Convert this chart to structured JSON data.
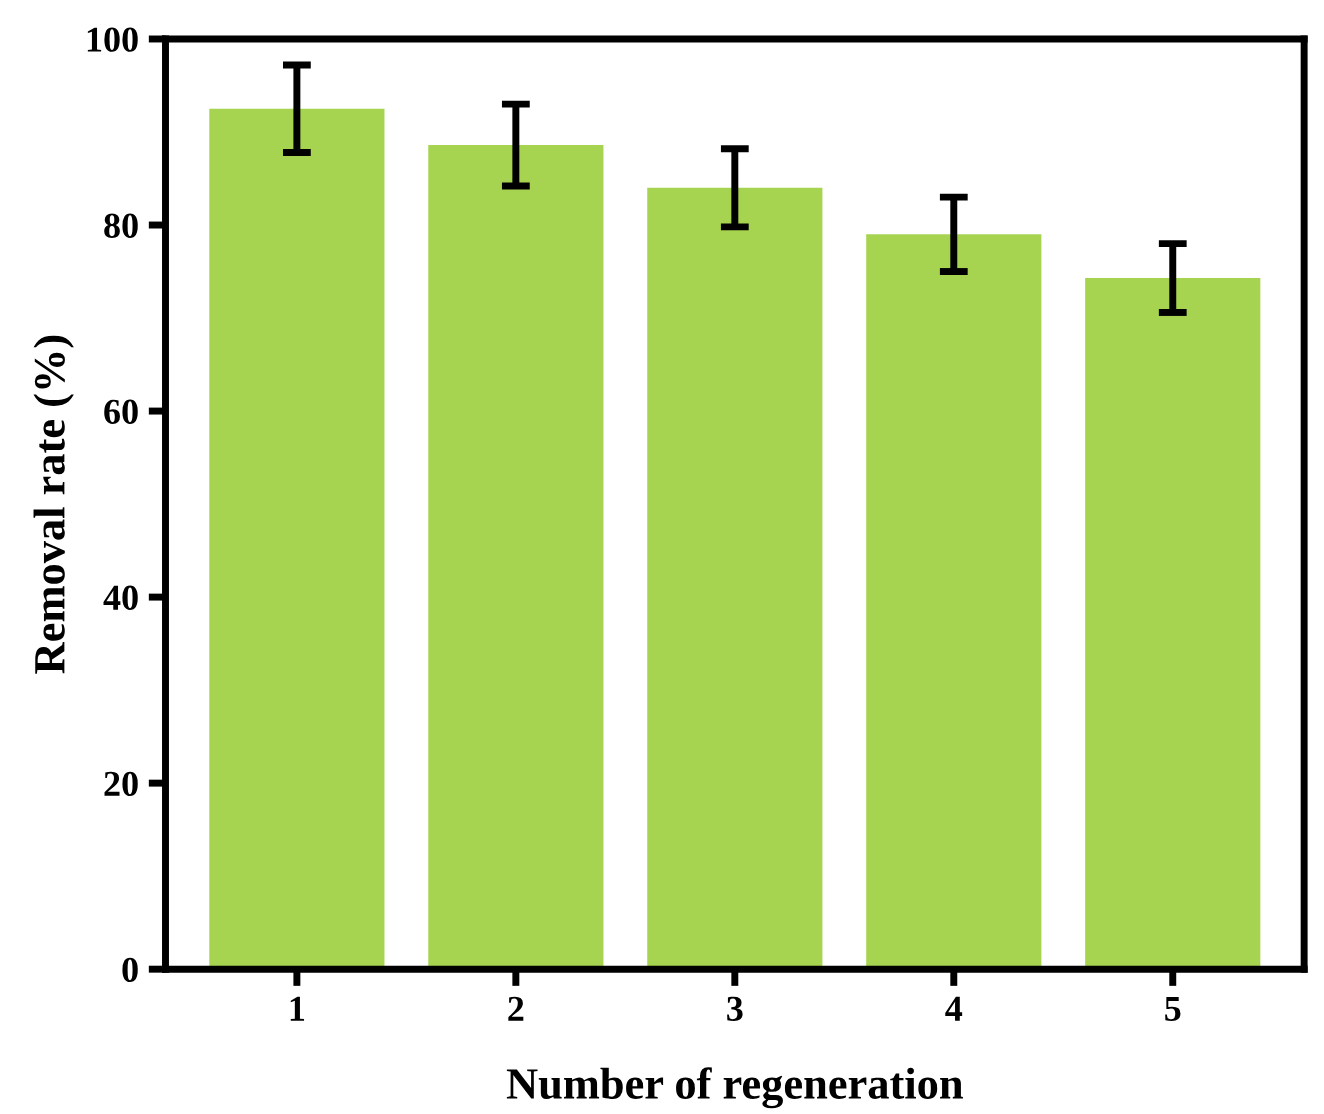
{
  "chart_data": {
    "type": "bar",
    "xlabel": "Number of regeneration",
    "ylabel": "Removal rate (%)",
    "categories": [
      "1",
      "2",
      "3",
      "4",
      "5"
    ],
    "values": [
      92.5,
      88.6,
      84.0,
      79.0,
      74.3
    ],
    "errors": [
      4.7,
      4.4,
      4.2,
      4.0,
      3.7
    ],
    "color": "#a6d450",
    "ylim": [
      0,
      100
    ],
    "yticks": [
      0,
      20,
      40,
      60,
      80,
      100
    ],
    "grid": false
  }
}
